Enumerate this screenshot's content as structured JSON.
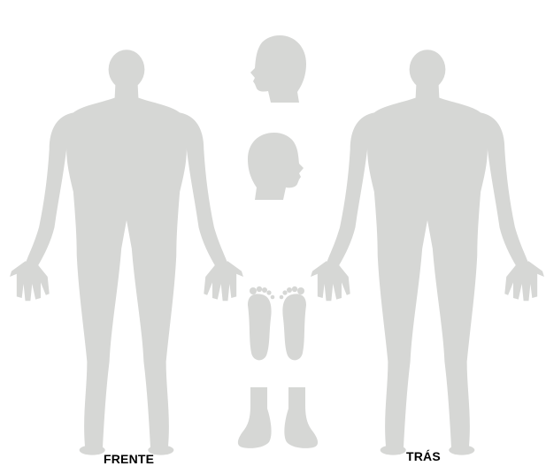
{
  "colors": {
    "silhouette": "#d6d7d5",
    "background": "#ffffff",
    "label": "#000000"
  },
  "labels": {
    "front": "FRENTE",
    "back": "TRÁS"
  },
  "regions": {
    "body_front": "body-front",
    "body_back": "body-back",
    "head_left": "head-left-profile",
    "head_right": "head-right-profile",
    "feet_soles": "feet-soles",
    "feet_tops": "feet-tops"
  }
}
